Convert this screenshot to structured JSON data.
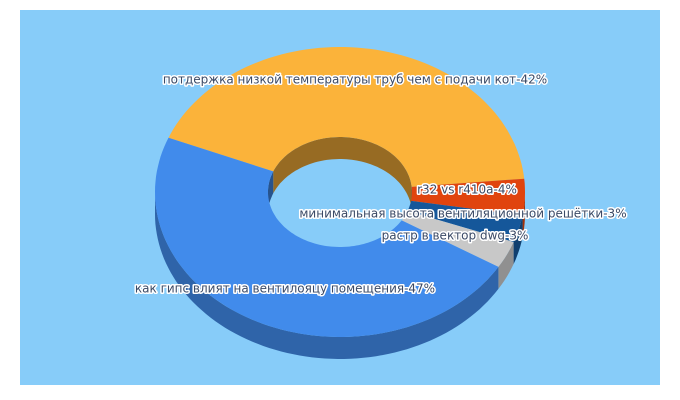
{
  "chart_data": {
    "type": "pie",
    "values": [
      42,
      4,
      3,
      3,
      47
    ],
    "value_labels": [
      "потдержка низкой температуры труб чем с подачи кот-42%",
      "r32 vs r410a-4%",
      "минимальная высота вентиляционной решётки-3%",
      "растр в вектор dwg-3%",
      "как гипс влият на вентилояцу помещения-47%"
    ],
    "colors": [
      "#fbb33a",
      "#e0440e",
      "#15579a",
      "#c8c8c8",
      "#418beb"
    ]
  }
}
